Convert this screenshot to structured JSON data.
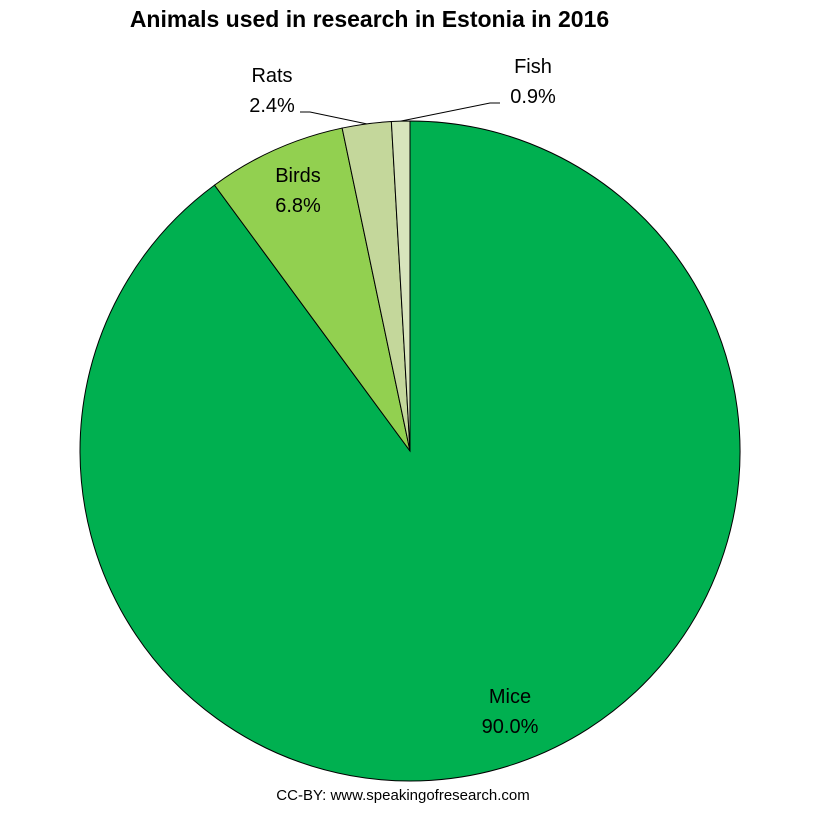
{
  "chart_data": {
    "type": "pie",
    "title": "Animals used in research in Estonia in 2016",
    "slices": [
      {
        "label": "Mice",
        "value": 90.0,
        "display": "90.0%",
        "color": "#00B050"
      },
      {
        "label": "Birds",
        "value": 6.8,
        "display": "6.8%",
        "color": "#92D050"
      },
      {
        "label": "Rats",
        "value": 2.4,
        "display": "2.4%",
        "color": "#C4D79B"
      },
      {
        "label": "Fish",
        "value": 0.9,
        "display": "0.9%",
        "color": "#D8E4BC"
      }
    ],
    "legend": "none"
  },
  "credit": "CC-BY: www.speakingofresearch.com"
}
